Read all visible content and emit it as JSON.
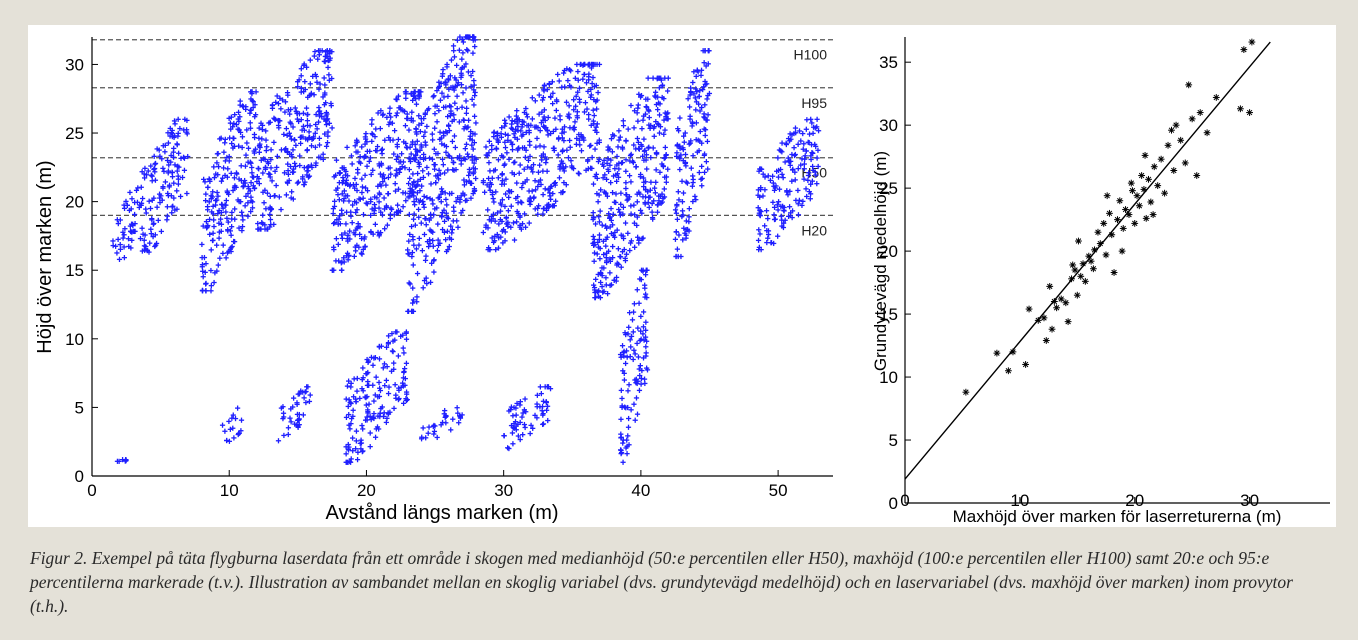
{
  "caption": "Figur 2. Exempel på täta flygburna laserdata från ett område i skogen med medianhöjd (50:e percentilen eller H50), maxhöjd (100:e percentilen eller H100) samt 20:e och 95:e percentilerna markerade (t.v.). Illustration av sambandet mellan en skoglig variabel (dvs. grundytevägd medelhöjd) och en laservariabel (dvs. maxhöjd över marken) inom provytor (t.h.).",
  "colors": {
    "points_left": "#1f1fff",
    "points_right": "#000000",
    "reference_lines": "#555555",
    "panel_bg": "#ffffff",
    "page_bg": "#e4e1d8"
  },
  "chart_data": [
    {
      "type": "scatter",
      "xlabel": "Avstånd längs marken (m)",
      "ylabel": "Höjd över marken (m)",
      "xlim": [
        0,
        54
      ],
      "ylim": [
        0,
        32
      ],
      "xticks": [
        "0",
        "10",
        "20",
        "30",
        "40",
        "50"
      ],
      "yticks": [
        "0",
        "5",
        "10",
        "15",
        "20",
        "25",
        "30"
      ],
      "grid": false,
      "marker": "+",
      "reference_lines": [
        {
          "label": "H100",
          "y": 31.8,
          "style": "dashed"
        },
        {
          "label": "H95",
          "y": 28.3,
          "style": "dashed"
        },
        {
          "label": "H50",
          "y": 23.2,
          "style": "dashed"
        },
        {
          "label": "H20",
          "y": 19.0,
          "style": "dashed"
        }
      ],
      "point_clusters": [
        {
          "x_range": [
            1.5,
            3.5
          ],
          "y_range": [
            15,
            21
          ]
        },
        {
          "x_range": [
            3.5,
            7
          ],
          "y_range": [
            16,
            26
          ]
        },
        {
          "x_range": [
            8,
            12
          ],
          "y_range": [
            13.5,
            28
          ]
        },
        {
          "x_range": [
            12,
            17.5
          ],
          "y_range": [
            18,
            31
          ]
        },
        {
          "x_range": [
            17.5,
            24
          ],
          "y_range": [
            15,
            28
          ]
        },
        {
          "x_range": [
            23,
            28
          ],
          "y_range": [
            12,
            32
          ]
        },
        {
          "x_range": [
            28.5,
            37
          ],
          "y_range": [
            16.5,
            30
          ]
        },
        {
          "x_range": [
            36.5,
            42
          ],
          "y_range": [
            13,
            29
          ]
        },
        {
          "x_range": [
            42.5,
            45
          ],
          "y_range": [
            16,
            31
          ]
        },
        {
          "x_range": [
            48.5,
            53
          ],
          "y_range": [
            16.5,
            26
          ]
        },
        {
          "x_range": [
            9.5,
            11
          ],
          "y_range": [
            2,
            5
          ]
        },
        {
          "x_range": [
            13.5,
            16
          ],
          "y_range": [
            2.5,
            6.5
          ]
        },
        {
          "x_range": [
            18.5,
            23
          ],
          "y_range": [
            1,
            10.5
          ]
        },
        {
          "x_range": [
            24,
            27
          ],
          "y_range": [
            2.5,
            5
          ]
        },
        {
          "x_range": [
            30,
            33.5
          ],
          "y_range": [
            2,
            6.5
          ]
        },
        {
          "x_range": [
            38.5,
            40.5
          ],
          "y_range": [
            1,
            15
          ]
        },
        {
          "x_range": [
            1.5,
            2.5
          ],
          "y_range": [
            1,
            1.2
          ]
        }
      ]
    },
    {
      "type": "scatter",
      "xlabel": "Maxhöjd över marken för laserreturerna (m)",
      "ylabel": "Grundytevägd medelhöjd (m)",
      "xlim": [
        0,
        37
      ],
      "ylim": [
        0,
        37
      ],
      "xticks": [
        "0",
        "10",
        "20",
        "30"
      ],
      "yticks": [
        "0",
        "5",
        "10",
        "15",
        "20",
        "25",
        "30",
        "35"
      ],
      "grid": false,
      "marker": "*",
      "regression_line": {
        "x": [
          0,
          31.8
        ],
        "y": [
          1.9,
          36.6
        ]
      },
      "points": [
        {
          "x": 5.3,
          "y": 8.8
        },
        {
          "x": 8.0,
          "y": 11.9
        },
        {
          "x": 9.0,
          "y": 10.5
        },
        {
          "x": 9.4,
          "y": 12.0
        },
        {
          "x": 10.5,
          "y": 11.0
        },
        {
          "x": 10.8,
          "y": 15.4
        },
        {
          "x": 11.6,
          "y": 14.5
        },
        {
          "x": 12.3,
          "y": 12.9
        },
        {
          "x": 12.6,
          "y": 17.2
        },
        {
          "x": 12.8,
          "y": 13.8
        },
        {
          "x": 13.2,
          "y": 15.5
        },
        {
          "x": 13.6,
          "y": 16.2
        },
        {
          "x": 14.0,
          "y": 15.9
        },
        {
          "x": 14.2,
          "y": 14.4
        },
        {
          "x": 14.5,
          "y": 17.8
        },
        {
          "x": 14.8,
          "y": 18.5
        },
        {
          "x": 15.0,
          "y": 16.5
        },
        {
          "x": 15.3,
          "y": 18.0
        },
        {
          "x": 15.5,
          "y": 19.0
        },
        {
          "x": 15.7,
          "y": 17.6
        },
        {
          "x": 16.0,
          "y": 19.6
        },
        {
          "x": 16.2,
          "y": 19.2
        },
        {
          "x": 16.5,
          "y": 20.1
        },
        {
          "x": 16.8,
          "y": 21.5
        },
        {
          "x": 17.0,
          "y": 20.6
        },
        {
          "x": 17.3,
          "y": 22.2
        },
        {
          "x": 17.5,
          "y": 19.7
        },
        {
          "x": 17.8,
          "y": 23.0
        },
        {
          "x": 18.0,
          "y": 21.3
        },
        {
          "x": 18.2,
          "y": 18.3
        },
        {
          "x": 18.5,
          "y": 22.5
        },
        {
          "x": 18.7,
          "y": 24.0
        },
        {
          "x": 19.0,
          "y": 21.8
        },
        {
          "x": 19.2,
          "y": 23.3
        },
        {
          "x": 19.5,
          "y": 22.9
        },
        {
          "x": 19.7,
          "y": 25.4
        },
        {
          "x": 20.0,
          "y": 22.2
        },
        {
          "x": 20.2,
          "y": 24.4
        },
        {
          "x": 20.4,
          "y": 23.6
        },
        {
          "x": 20.6,
          "y": 26.0
        },
        {
          "x": 20.8,
          "y": 24.9
        },
        {
          "x": 21.0,
          "y": 22.6
        },
        {
          "x": 21.2,
          "y": 25.7
        },
        {
          "x": 21.4,
          "y": 23.9
        },
        {
          "x": 21.7,
          "y": 26.7
        },
        {
          "x": 22.0,
          "y": 25.2
        },
        {
          "x": 22.3,
          "y": 27.3
        },
        {
          "x": 22.6,
          "y": 24.6
        },
        {
          "x": 22.9,
          "y": 28.4
        },
        {
          "x": 23.2,
          "y": 29.6
        },
        {
          "x": 23.6,
          "y": 30.0
        },
        {
          "x": 24.0,
          "y": 28.8
        },
        {
          "x": 24.4,
          "y": 27.0
        },
        {
          "x": 24.7,
          "y": 33.2
        },
        {
          "x": 25.0,
          "y": 30.5
        },
        {
          "x": 25.4,
          "y": 26.0
        },
        {
          "x": 25.7,
          "y": 31.0
        },
        {
          "x": 26.3,
          "y": 29.4
        },
        {
          "x": 27.1,
          "y": 32.2
        },
        {
          "x": 29.2,
          "y": 31.3
        },
        {
          "x": 29.5,
          "y": 36.0
        },
        {
          "x": 30.0,
          "y": 31.0
        },
        {
          "x": 30.2,
          "y": 36.6
        },
        {
          "x": 13.0,
          "y": 16.0
        },
        {
          "x": 15.1,
          "y": 20.8
        },
        {
          "x": 16.4,
          "y": 18.6
        },
        {
          "x": 18.9,
          "y": 20.0
        },
        {
          "x": 19.8,
          "y": 24.8
        },
        {
          "x": 21.6,
          "y": 22.9
        },
        {
          "x": 23.4,
          "y": 26.4
        },
        {
          "x": 17.6,
          "y": 24.4
        },
        {
          "x": 20.9,
          "y": 27.6
        },
        {
          "x": 14.6,
          "y": 18.9
        },
        {
          "x": 12.1,
          "y": 14.7
        }
      ]
    }
  ]
}
